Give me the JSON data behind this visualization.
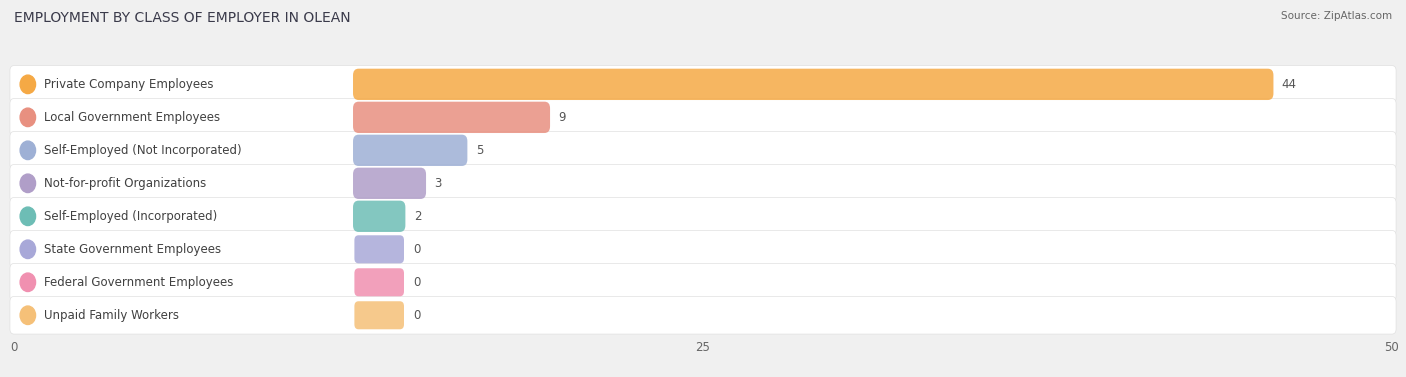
{
  "title": "EMPLOYMENT BY CLASS OF EMPLOYER IN OLEAN",
  "source": "Source: ZipAtlas.com",
  "categories": [
    "Private Company Employees",
    "Local Government Employees",
    "Self-Employed (Not Incorporated)",
    "Not-for-profit Organizations",
    "Self-Employed (Incorporated)",
    "State Government Employees",
    "Federal Government Employees",
    "Unpaid Family Workers"
  ],
  "values": [
    44,
    9,
    5,
    3,
    2,
    0,
    0,
    0
  ],
  "bar_colors": [
    "#F5A945",
    "#E89080",
    "#9EB0D5",
    "#B09EC8",
    "#6DBDB5",
    "#A8A8D8",
    "#F090B0",
    "#F5C078"
  ],
  "dot_colors": [
    "#F5A945",
    "#E89080",
    "#9EB0D5",
    "#B09EC8",
    "#6DBDB5",
    "#A8A8D8",
    "#F090B0",
    "#F5C078"
  ],
  "row_bg_color": "#ffffff",
  "row_border_color": "#e0e0e0",
  "fig_bg_color": "#f0f0f0",
  "xlim": [
    0,
    50
  ],
  "xticks": [
    0,
    25,
    50
  ],
  "title_fontsize": 10,
  "label_fontsize": 8.5,
  "value_fontsize": 8.5,
  "source_fontsize": 7.5
}
